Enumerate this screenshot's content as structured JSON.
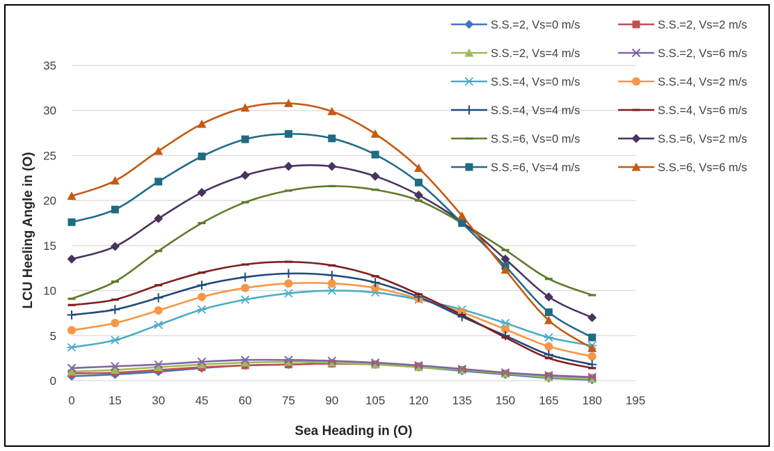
{
  "chart_data": {
    "type": "line",
    "title": "",
    "xlabel": "Sea Heading in",
    "ylabel": "LCU Heeling Angle in",
    "unit_label": "(O)",
    "x_ticks": [
      0,
      15,
      30,
      45,
      60,
      75,
      90,
      105,
      120,
      135,
      150,
      165,
      180,
      195
    ],
    "y_ticks": [
      0,
      5,
      10,
      15,
      20,
      25,
      30,
      35
    ],
    "xlim": [
      0,
      195
    ],
    "ylim": [
      0,
      35
    ],
    "grid": "horizontal",
    "legend_position": "top-right",
    "x": [
      0,
      15,
      30,
      45,
      60,
      75,
      90,
      105,
      120,
      135,
      150,
      165,
      180
    ],
    "series": [
      {
        "name": "S.S.=2, Vs=0 m/s",
        "color": "#4472C4",
        "marker": "diamond",
        "values": [
          0.5,
          0.7,
          1.0,
          1.4,
          1.7,
          1.8,
          1.9,
          1.8,
          1.5,
          1.1,
          0.7,
          0.3,
          0.1
        ]
      },
      {
        "name": "S.S.=2, Vs=2 m/s",
        "color": "#C0504D",
        "marker": "square",
        "values": [
          0.8,
          0.9,
          1.2,
          1.5,
          1.7,
          1.8,
          1.9,
          1.8,
          1.6,
          1.2,
          0.8,
          0.5,
          0.3
        ]
      },
      {
        "name": "S.S.=2, Vs=4 m/s",
        "color": "#9BBB59",
        "marker": "triangle",
        "values": [
          1.0,
          1.2,
          1.5,
          1.8,
          2.0,
          2.1,
          2.0,
          1.8,
          1.5,
          1.2,
          0.8,
          0.4,
          0.2
        ]
      },
      {
        "name": "S.S.=2, Vs=6 m/s",
        "color": "#8064A2",
        "marker": "x",
        "values": [
          1.4,
          1.6,
          1.8,
          2.1,
          2.3,
          2.3,
          2.2,
          2.0,
          1.7,
          1.3,
          0.9,
          0.6,
          0.4
        ]
      },
      {
        "name": "S.S.=4, Vs=0 m/s",
        "color": "#4BACC6",
        "marker": "star",
        "values": [
          3.7,
          4.5,
          6.2,
          7.9,
          9.0,
          9.7,
          10.0,
          9.8,
          9.0,
          7.9,
          6.4,
          4.8,
          3.9
        ]
      },
      {
        "name": "S.S.=4, Vs=2 m/s",
        "color": "#F79646",
        "marker": "circle",
        "values": [
          5.6,
          6.4,
          7.8,
          9.3,
          10.3,
          10.8,
          10.8,
          10.3,
          9.1,
          7.6,
          5.7,
          3.8,
          2.7
        ]
      },
      {
        "name": "S.S.=4, Vs=4 m/s",
        "color": "#1F497D",
        "marker": "plus",
        "values": [
          7.3,
          7.9,
          9.2,
          10.6,
          11.5,
          11.9,
          11.7,
          10.9,
          9.3,
          7.1,
          5.0,
          2.9,
          1.8
        ]
      },
      {
        "name": "S.S.=4, Vs=6 m/s",
        "color": "#7F1F1F",
        "marker": "dash",
        "values": [
          8.4,
          9.0,
          10.6,
          12.0,
          12.9,
          13.2,
          12.8,
          11.6,
          9.6,
          7.3,
          4.8,
          2.5,
          1.4
        ]
      },
      {
        "name": "S.S.=6, Vs=0 m/s",
        "color": "#5E7B2A",
        "marker": "dash",
        "values": [
          9.1,
          11.0,
          14.4,
          17.5,
          19.8,
          21.1,
          21.6,
          21.2,
          20.0,
          17.5,
          14.5,
          11.3,
          9.5
        ]
      },
      {
        "name": "S.S.=6, Vs=2 m/s",
        "color": "#49325F",
        "marker": "diamond",
        "values": [
          13.5,
          14.9,
          18.0,
          20.9,
          22.8,
          23.8,
          23.8,
          22.7,
          20.6,
          17.6,
          13.5,
          9.3,
          7.0
        ]
      },
      {
        "name": "S.S.=6, Vs=4 m/s",
        "color": "#1F6B84",
        "marker": "square",
        "values": [
          17.6,
          19.0,
          22.1,
          24.9,
          26.8,
          27.4,
          26.9,
          25.1,
          22.0,
          17.5,
          12.7,
          7.6,
          4.8
        ]
      },
      {
        "name": "S.S.=6, Vs=6 m/s",
        "color": "#C55A11",
        "marker": "triangle",
        "values": [
          20.5,
          22.2,
          25.5,
          28.5,
          30.3,
          30.8,
          29.9,
          27.4,
          23.6,
          18.3,
          12.3,
          6.7,
          3.6
        ]
      }
    ]
  }
}
